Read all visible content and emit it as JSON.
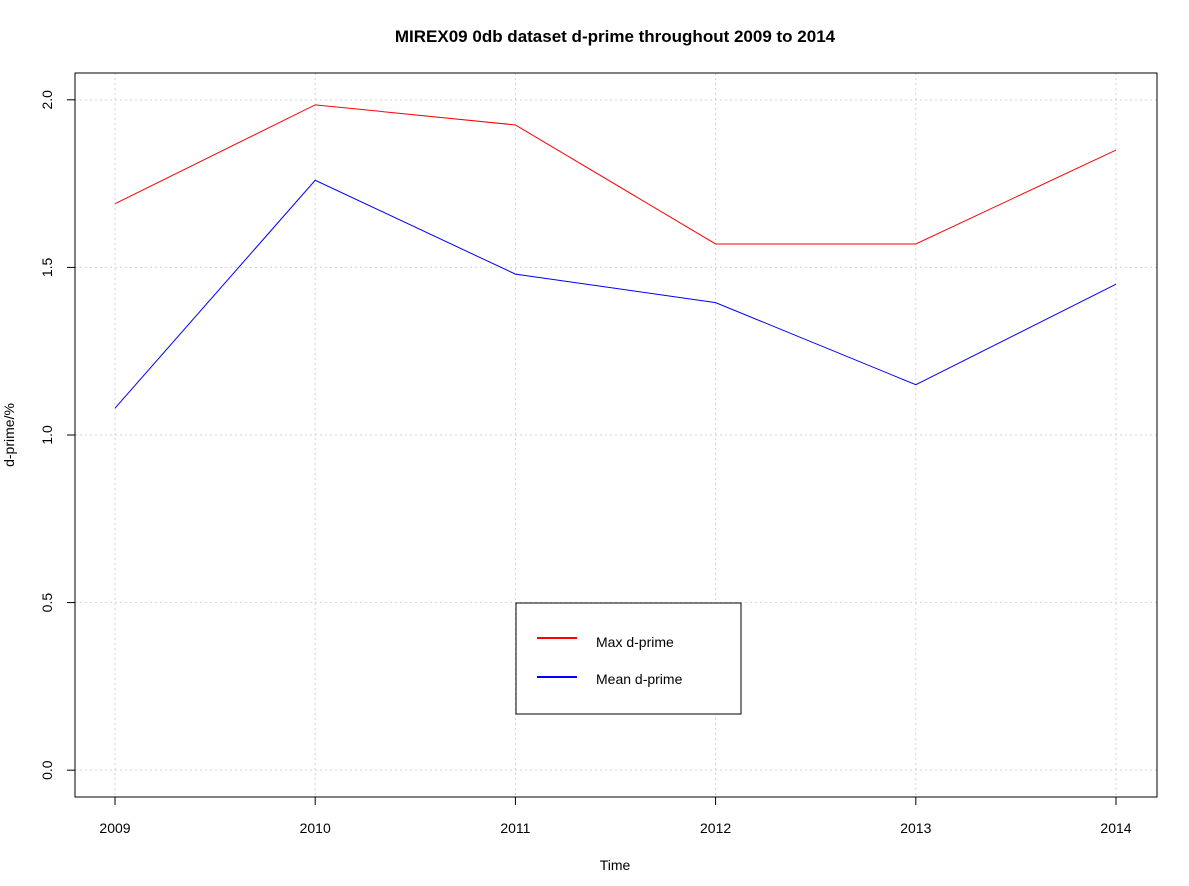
{
  "chart_data": {
    "type": "line",
    "title": "MIREX09 0db dataset d-prime throughout 2009 to 2014",
    "xlabel": "Time",
    "ylabel": "d-prime/%",
    "x": [
      "2009",
      "2010",
      "2011",
      "2012",
      "2013",
      "2014"
    ],
    "y_ticks": [
      "0.0",
      "0.5",
      "1.0",
      "1.5",
      "2.0"
    ],
    "ylim": [
      -0.08,
      2.08
    ],
    "grid": true,
    "legend_position": "bottom-center",
    "series": [
      {
        "name": "Max d-prime",
        "color": "#ff0000",
        "values": [
          1.69,
          1.985,
          1.925,
          1.57,
          1.57,
          1.85
        ]
      },
      {
        "name": "Mean d-prime",
        "color": "#0000ff",
        "values": [
          1.08,
          1.76,
          1.48,
          1.395,
          1.15,
          1.45
        ]
      }
    ]
  }
}
